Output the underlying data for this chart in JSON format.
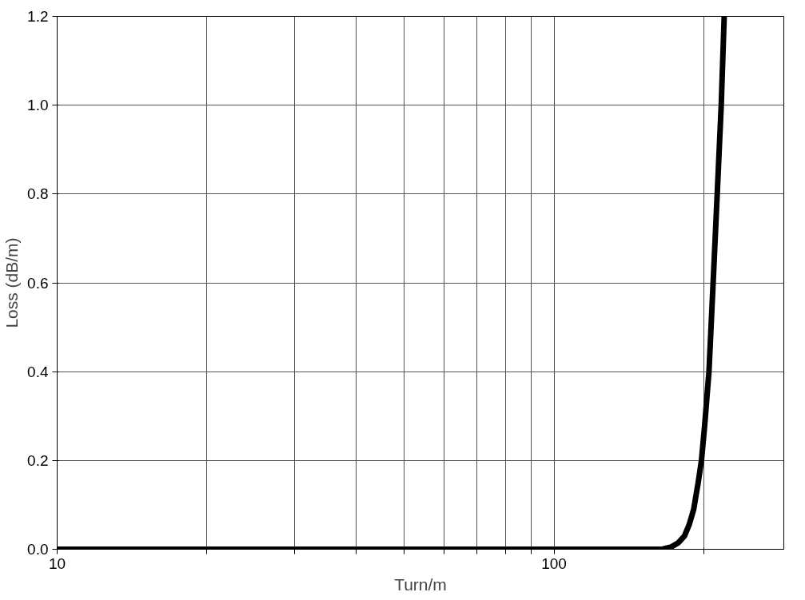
{
  "chart_data": {
    "type": "line",
    "xlabel": "Turn/m",
    "ylabel": "Loss (dB/m)",
    "log": "x",
    "xlim": [
      10,
      290
    ],
    "ylim": [
      0,
      1.2
    ],
    "xticks": [
      10,
      {
        "value": 20,
        "label": null
      },
      {
        "value": 30,
        "label": null
      },
      {
        "value": 40,
        "label": null
      },
      {
        "value": 50,
        "label": null
      },
      {
        "value": 60,
        "label": null
      },
      {
        "value": 70,
        "label": null
      },
      {
        "value": 80,
        "label": null
      },
      {
        "value": 90,
        "label": null
      },
      100,
      {
        "value": 200,
        "label": null
      }
    ],
    "yticks": [
      {
        "value": 0,
        "label": "0.0"
      },
      0.2,
      0.4,
      0.6,
      0.8,
      {
        "value": 1,
        "label": "1.0"
      },
      1.2
    ],
    "grid": true,
    "marker": "none",
    "line_style": "solid",
    "series": [
      {
        "color": "#000000",
        "x": [
          10,
          50,
          100,
          150,
          165,
          172,
          178,
          183,
          187,
          191,
          195,
          198,
          201,
          205,
          209,
          213,
          217,
          220
        ],
        "values": [
          0,
          0,
          0,
          0,
          0,
          0.005,
          0.015,
          0.03,
          0.055,
          0.09,
          0.15,
          0.2,
          0.28,
          0.4,
          0.6,
          0.8,
          1.0,
          1.2
        ]
      }
    ]
  }
}
